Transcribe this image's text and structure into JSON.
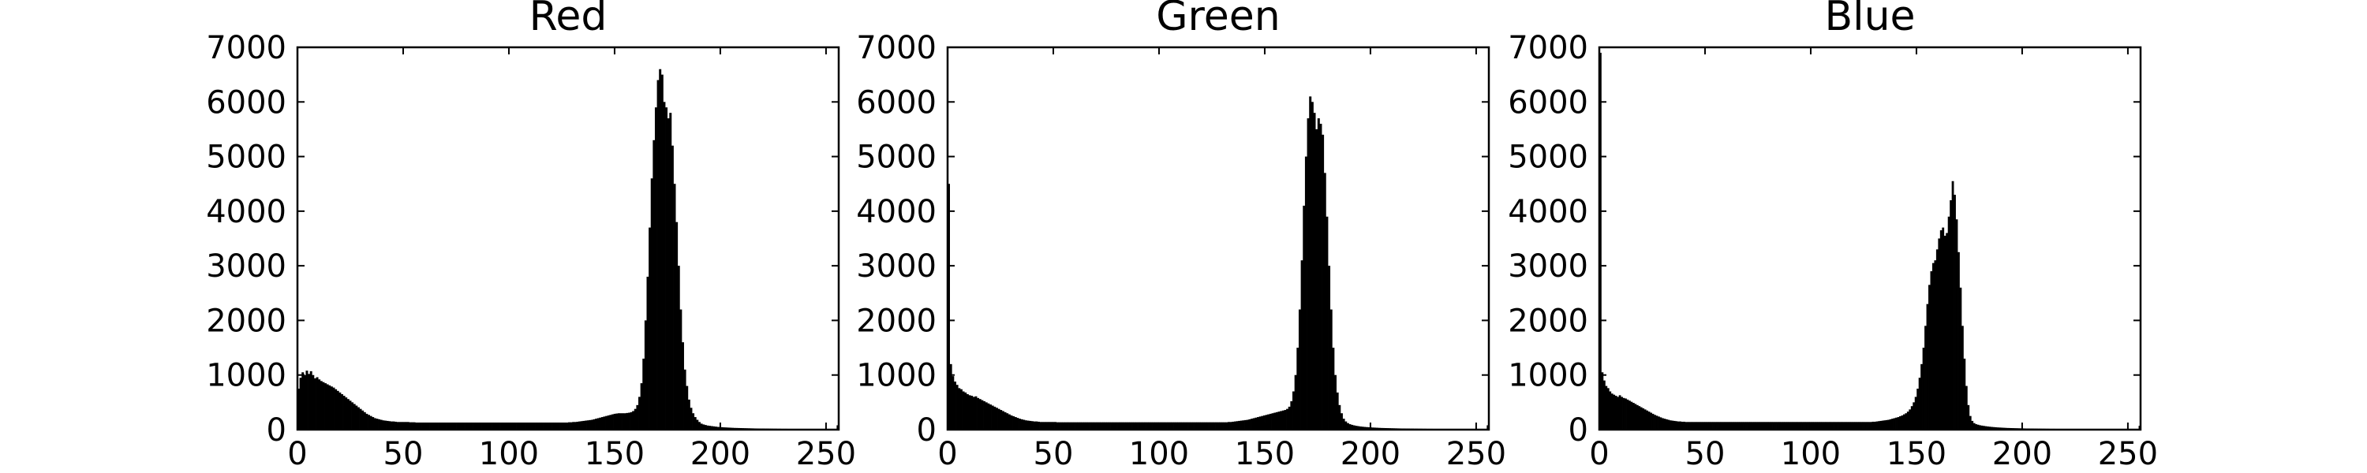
{
  "chart_data": [
    {
      "type": "bar",
      "title": "Red",
      "xlabel": "",
      "ylabel": "",
      "xlim": [
        0,
        256
      ],
      "ylim": [
        0,
        7000
      ],
      "xticks": [
        0,
        50,
        100,
        150,
        200,
        250
      ],
      "yticks": [
        0,
        1000,
        2000,
        3000,
        4000,
        5000,
        6000,
        7000
      ],
      "grid": false,
      "bar_color": "#000000",
      "series": [
        {
          "bins": [
            0,
            256
          ],
          "values": [
            750,
            950,
            1050,
            1000,
            1080,
            1020,
            1070,
            1000,
            940,
            960,
            920,
            890,
            870,
            850,
            830,
            810,
            790,
            770,
            740,
            710,
            680,
            650,
            620,
            590,
            560,
            530,
            500,
            470,
            440,
            410,
            380,
            350,
            320,
            290,
            270,
            250,
            230,
            210,
            200,
            190,
            180,
            170,
            165,
            160,
            155,
            150,
            150,
            145,
            140,
            140,
            140,
            140,
            140,
            140,
            135,
            135,
            135,
            130,
            130,
            130,
            130,
            130,
            130,
            130,
            130,
            130,
            130,
            130,
            130,
            130,
            130,
            130,
            130,
            130,
            130,
            130,
            130,
            130,
            130,
            130,
            130,
            130,
            130,
            130,
            130,
            130,
            130,
            130,
            130,
            130,
            130,
            130,
            130,
            130,
            130,
            130,
            130,
            130,
            130,
            130,
            130,
            130,
            130,
            130,
            130,
            130,
            130,
            130,
            130,
            130,
            130,
            130,
            130,
            130,
            130,
            130,
            130,
            130,
            130,
            130,
            130,
            130,
            130,
            130,
            130,
            130,
            130,
            130,
            130,
            130,
            130,
            135,
            135,
            140,
            140,
            145,
            150,
            155,
            160,
            165,
            170,
            175,
            180,
            190,
            200,
            210,
            220,
            230,
            240,
            250,
            260,
            270,
            280,
            290,
            295,
            300,
            300,
            300,
            300,
            305,
            310,
            320,
            340,
            380,
            450,
            600,
            850,
            1300,
            2000,
            2800,
            3700,
            4600,
            5300,
            5900,
            6400,
            6600,
            6500,
            6000,
            5900,
            5700,
            5800,
            5200,
            4500,
            3800,
            3000,
            2200,
            1600,
            1100,
            800,
            550,
            400,
            300,
            230,
            180,
            140,
            110,
            95,
            85,
            75,
            70,
            65,
            60,
            55,
            50,
            48,
            45,
            42,
            40,
            38,
            36,
            34,
            32,
            31,
            30,
            29,
            28,
            27,
            26,
            25,
            24,
            23,
            22,
            21,
            20,
            20,
            20,
            19,
            19,
            18,
            18,
            17,
            17,
            16,
            16,
            15,
            15,
            15,
            14,
            14,
            14,
            13,
            13,
            13,
            12,
            12,
            12,
            11,
            11,
            11,
            10,
            10,
            10,
            10,
            10,
            10,
            10,
            10,
            10,
            10,
            10,
            10,
            80
          ]
        }
      ]
    },
    {
      "type": "bar",
      "title": "Green",
      "xlabel": "",
      "ylabel": "",
      "xlim": [
        0,
        256
      ],
      "ylim": [
        0,
        7000
      ],
      "xticks": [
        0,
        50,
        100,
        150,
        200,
        250
      ],
      "yticks": [
        0,
        1000,
        2000,
        3000,
        4000,
        5000,
        6000,
        7000
      ],
      "grid": false,
      "bar_color": "#000000",
      "series": [
        {
          "bins": [
            0,
            256
          ],
          "values": [
            4500,
            1200,
            980,
            880,
            820,
            760,
            740,
            700,
            680,
            650,
            630,
            620,
            600,
            610,
            580,
            560,
            540,
            520,
            500,
            480,
            460,
            440,
            420,
            400,
            380,
            360,
            340,
            320,
            300,
            280,
            260,
            245,
            230,
            215,
            200,
            190,
            180,
            170,
            165,
            160,
            155,
            150,
            150,
            145,
            140,
            140,
            140,
            140,
            140,
            140,
            140,
            140,
            135,
            135,
            135,
            135,
            135,
            135,
            135,
            135,
            135,
            135,
            135,
            135,
            135,
            135,
            135,
            135,
            135,
            135,
            135,
            135,
            135,
            135,
            135,
            135,
            135,
            135,
            135,
            135,
            135,
            135,
            135,
            135,
            135,
            135,
            135,
            135,
            135,
            135,
            135,
            135,
            135,
            135,
            135,
            135,
            135,
            135,
            135,
            135,
            135,
            135,
            135,
            135,
            135,
            135,
            135,
            135,
            135,
            135,
            135,
            135,
            135,
            135,
            135,
            135,
            135,
            135,
            135,
            135,
            135,
            135,
            135,
            135,
            135,
            135,
            135,
            135,
            135,
            135,
            135,
            135,
            135,
            135,
            140,
            140,
            145,
            150,
            155,
            160,
            165,
            170,
            175,
            180,
            190,
            200,
            210,
            220,
            230,
            240,
            250,
            260,
            270,
            280,
            290,
            300,
            310,
            320,
            330,
            340,
            350,
            360,
            380,
            420,
            520,
            700,
            1000,
            1500,
            2200,
            3100,
            4100,
            5000,
            5700,
            6100,
            6000,
            5800,
            5500,
            5700,
            5600,
            5400,
            4700,
            3900,
            3000,
            2200,
            1500,
            1000,
            680,
            450,
            300,
            200,
            150,
            120,
            100,
            88,
            78,
            70,
            64,
            58,
            54,
            50,
            47,
            44,
            41,
            39,
            37,
            35,
            33,
            31,
            30,
            29,
            28,
            27,
            26,
            25,
            24,
            23,
            22,
            21,
            21,
            20,
            20,
            19,
            19,
            18,
            18,
            17,
            17,
            16,
            16,
            15,
            15,
            15,
            14,
            14,
            14,
            13,
            13,
            13,
            12,
            12,
            12,
            12,
            11,
            11,
            11,
            11,
            10,
            10,
            10,
            10,
            10,
            10,
            10,
            10,
            10,
            10,
            10,
            10,
            80
          ]
        }
      ]
    },
    {
      "type": "bar",
      "title": "Blue",
      "xlabel": "",
      "ylabel": "",
      "xlim": [
        0,
        256
      ],
      "ylim": [
        0,
        7000
      ],
      "xticks": [
        0,
        50,
        100,
        150,
        200,
        250
      ],
      "yticks": [
        0,
        1000,
        2000,
        3000,
        4000,
        5000,
        6000,
        7000
      ],
      "grid": false,
      "bar_color": "#000000",
      "series": [
        {
          "bins": [
            0,
            256
          ],
          "values": [
            6900,
            1050,
            900,
            800,
            760,
            700,
            660,
            640,
            620,
            600,
            630,
            600,
            580,
            570,
            550,
            530,
            510,
            490,
            470,
            450,
            430,
            410,
            390,
            370,
            350,
            330,
            310,
            290,
            270,
            255,
            240,
            225,
            210,
            200,
            190,
            180,
            170,
            165,
            160,
            155,
            150,
            150,
            145,
            145,
            140,
            140,
            140,
            140,
            140,
            140,
            140,
            140,
            140,
            140,
            140,
            140,
            140,
            140,
            140,
            140,
            140,
            140,
            140,
            140,
            140,
            140,
            140,
            140,
            140,
            140,
            140,
            140,
            140,
            140,
            140,
            140,
            140,
            140,
            140,
            140,
            140,
            140,
            140,
            140,
            140,
            140,
            140,
            140,
            140,
            140,
            140,
            140,
            140,
            140,
            140,
            140,
            140,
            140,
            140,
            140,
            140,
            140,
            140,
            140,
            140,
            140,
            140,
            140,
            140,
            140,
            140,
            140,
            140,
            140,
            140,
            140,
            140,
            140,
            140,
            140,
            140,
            140,
            140,
            140,
            140,
            140,
            140,
            140,
            140,
            140,
            140,
            140,
            140,
            140,
            140,
            140,
            140,
            140,
            140,
            140,
            145,
            145,
            150,
            155,
            160,
            165,
            170,
            175,
            180,
            190,
            200,
            210,
            220,
            230,
            245,
            260,
            280,
            300,
            330,
            370,
            430,
            500,
            600,
            750,
            950,
            1200,
            1500,
            1900,
            2300,
            2650,
            2900,
            3050,
            3100,
            3300,
            3500,
            3650,
            3700,
            3550,
            3600,
            3900,
            4200,
            4550,
            4300,
            3850,
            3250,
            2600,
            1900,
            1300,
            800,
            450,
            250,
            160,
            120,
            100,
            90,
            80,
            74,
            68,
            63,
            58,
            54,
            50,
            47,
            44,
            41,
            39,
            37,
            35,
            33,
            31,
            30,
            29,
            28,
            27,
            26,
            25,
            24,
            23,
            22,
            21,
            21,
            20,
            20,
            19,
            19,
            18,
            18,
            17,
            17,
            16,
            16,
            15,
            15,
            15,
            14,
            14,
            14,
            13,
            13,
            13,
            12,
            12,
            12,
            12,
            11,
            11,
            11,
            11,
            10,
            10,
            10,
            10,
            10,
            10,
            10,
            10,
            10,
            10,
            10,
            10,
            10,
            10,
            10,
            10,
            10,
            10,
            10,
            10,
            10,
            10,
            10,
            10,
            10,
            10,
            10,
            10,
            10,
            70
          ]
        }
      ]
    }
  ]
}
